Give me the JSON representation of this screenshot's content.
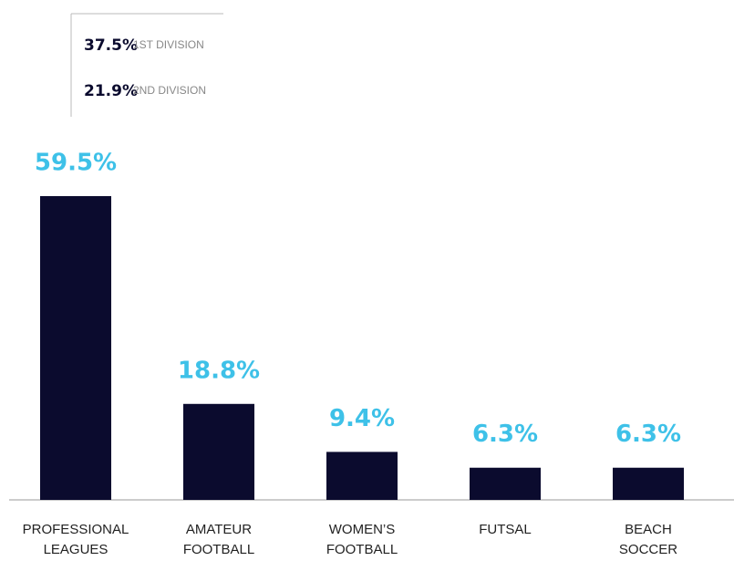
{
  "chart_data": {
    "type": "bar",
    "categories": [
      "PROFESSIONAL LEAGUES",
      "AMATEUR FOOTBALL",
      "WOMEN’S FOOTBALL",
      "FUTSAL",
      "BEACH SOCCER"
    ],
    "values": [
      59.5,
      18.8,
      9.4,
      6.3,
      6.3
    ],
    "value_labels": [
      "59.5%",
      "18.8%",
      "9.4%",
      "6.3%",
      "6.3%"
    ],
    "color": "#0b0b2e",
    "label_color": "#3ec1e8",
    "breakdown": [
      {
        "value": 37.5,
        "value_label": "37.5%",
        "label": "1ST DIVISION"
      },
      {
        "value": 21.9,
        "value_label": "21.9%",
        "label": "2ND DIVISION"
      }
    ]
  }
}
